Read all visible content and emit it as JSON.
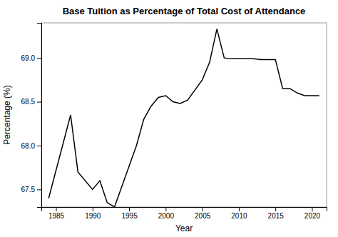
{
  "chart_data": {
    "type": "line",
    "title": "Base Tuition as Percentage of Total Cost of Attendance",
    "xlabel": "Year",
    "ylabel": "Percentage (%)",
    "color": "black",
    "x": [
      1984,
      1987,
      1988,
      1990,
      1991,
      1992,
      1993,
      1996,
      1997,
      1998,
      1999,
      2000,
      2001,
      2002,
      2003,
      2005,
      2006,
      2007,
      2008,
      2009,
      2010,
      2011,
      2012,
      2013,
      2014,
      2015,
      2016,
      2017,
      2018,
      2019,
      2020,
      2021
    ],
    "values": [
      67.4,
      68.35,
      67.7,
      67.5,
      67.6,
      67.35,
      67.3,
      68.0,
      68.3,
      68.45,
      68.55,
      68.57,
      68.5,
      68.48,
      68.52,
      68.75,
      68.95,
      69.33,
      69.0,
      68.99,
      68.99,
      68.99,
      68.99,
      68.98,
      68.98,
      68.98,
      68.65,
      68.65,
      68.6,
      68.57,
      68.57,
      68.57
    ],
    "xlim": [
      1983,
      2022
    ],
    "ylim": [
      67.3,
      69.4
    ],
    "xticks": [
      1985,
      1990,
      1995,
      2000,
      2005,
      2010,
      2015,
      2020
    ],
    "yticks": [
      67.5,
      {
        "value": 68.0,
        "label": "68.0"
      },
      68.5,
      {
        "value": 69.0,
        "label": "69.0"
      }
    ],
    "grid": false
  }
}
